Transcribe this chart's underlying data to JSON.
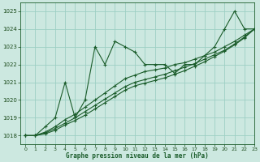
{
  "title": "Graphe pression niveau de la mer (hPa)",
  "background_color": "#cce8e0",
  "line_color": "#1a5c2a",
  "grid_color": "#9dcfc4",
  "text_color": "#1a4a1a",
  "xlim": [
    -0.5,
    23
  ],
  "ylim": [
    1017.5,
    1025.5
  ],
  "yticks": [
    1018,
    1019,
    1020,
    1021,
    1022,
    1023,
    1024,
    1025
  ],
  "xticks": [
    0,
    1,
    2,
    3,
    4,
    5,
    6,
    7,
    8,
    9,
    10,
    11,
    12,
    13,
    14,
    15,
    16,
    17,
    18,
    19,
    20,
    21,
    22,
    23
  ],
  "series": [
    [
      1018.0,
      1018.0,
      1018.5,
      1019.0,
      1021.0,
      1019.0,
      1020.0,
      1023.0,
      1022.0,
      1023.3,
      1023.0,
      1022.7,
      1022.0,
      1022.0,
      1022.0,
      1021.5,
      1022.0,
      1022.0,
      1022.5,
      1023.0,
      1024.0,
      1025.0,
      1024.0,
      1024.0
    ],
    [
      1018.0,
      1018.0,
      1018.2,
      1018.5,
      1018.9,
      1019.2,
      1019.6,
      1020.0,
      1020.4,
      1020.8,
      1021.2,
      1021.4,
      1021.6,
      1021.7,
      1021.8,
      1022.0,
      1022.1,
      1022.3,
      1022.5,
      1022.7,
      1023.0,
      1023.3,
      1023.65,
      1024.0
    ],
    [
      1018.0,
      1018.0,
      1018.15,
      1018.4,
      1018.7,
      1019.0,
      1019.35,
      1019.7,
      1020.05,
      1020.4,
      1020.75,
      1021.0,
      1021.15,
      1021.3,
      1021.45,
      1021.65,
      1021.85,
      1022.05,
      1022.3,
      1022.55,
      1022.8,
      1023.15,
      1023.55,
      1024.0
    ],
    [
      1018.0,
      1018.0,
      1018.1,
      1018.3,
      1018.6,
      1018.85,
      1019.15,
      1019.5,
      1019.85,
      1020.2,
      1020.55,
      1020.8,
      1020.95,
      1021.1,
      1021.25,
      1021.45,
      1021.65,
      1021.9,
      1022.15,
      1022.45,
      1022.75,
      1023.1,
      1023.5,
      1024.0
    ]
  ]
}
